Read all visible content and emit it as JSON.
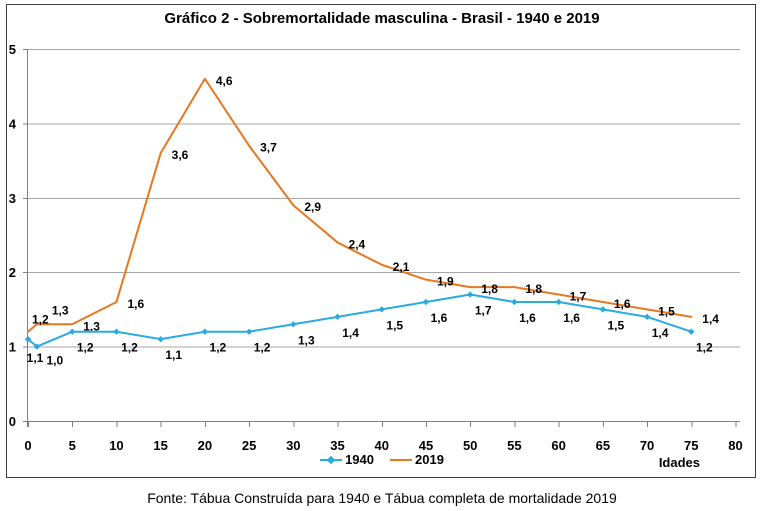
{
  "chart_data": {
    "type": "line",
    "title": "Gráfico 2 - Sobremortalidade masculina - Brasil - 1940 e 2019",
    "xlabel": "Idades",
    "ylabel": "",
    "x": [
      0,
      1,
      5,
      10,
      15,
      20,
      25,
      30,
      35,
      40,
      45,
      50,
      55,
      60,
      65,
      70,
      75
    ],
    "xticks": [
      0,
      5,
      10,
      15,
      20,
      25,
      30,
      35,
      40,
      45,
      50,
      55,
      60,
      65,
      70,
      75,
      80
    ],
    "yticks": [
      0,
      1,
      2,
      3,
      4,
      5
    ],
    "xlim": [
      0,
      80
    ],
    "ylim": [
      0,
      5
    ],
    "grid": "horizontal",
    "legend_position": "bottom-center",
    "series": [
      {
        "name": "1940",
        "color": "#29ABE2",
        "markers": true,
        "values": [
          1.1,
          1.0,
          1.2,
          1.2,
          1.1,
          1.2,
          1.2,
          1.3,
          1.4,
          1.5,
          1.6,
          1.7,
          1.6,
          1.6,
          1.5,
          1.4,
          1.2
        ],
        "labels": [
          "1,1",
          "1,0",
          "1,2",
          "1,2",
          "1,1",
          "1,2",
          "1,2",
          "1,3",
          "1,4",
          "1,5",
          "1,6",
          "1,7",
          "1,6",
          "1,6",
          "1,5",
          "1,4",
          "1,2"
        ]
      },
      {
        "name": "2019",
        "color": "#E8771E",
        "markers": false,
        "values": [
          1.2,
          1.3,
          1.3,
          1.6,
          3.6,
          4.6,
          3.7,
          2.9,
          2.4,
          2.1,
          1.9,
          1.8,
          1.8,
          1.7,
          1.6,
          1.5,
          1.4
        ],
        "labels": [
          "1,2",
          "1,3",
          "1,3",
          "1,6",
          "3,6",
          "4,6",
          "3,7",
          "2,9",
          "2,4",
          "2,1",
          "1,9",
          "1,8",
          "1,8",
          "1,7",
          "1,6",
          "1,5",
          "1,4"
        ]
      }
    ],
    "colors": {
      "grid": "#A6A6A6",
      "axis": "#7F7F7F",
      "border": "#3F3F3F",
      "text": "#000000"
    }
  },
  "source_note": "Fonte: Tábua Construída para 1940 e Tábua completa de mortalidade 2019"
}
